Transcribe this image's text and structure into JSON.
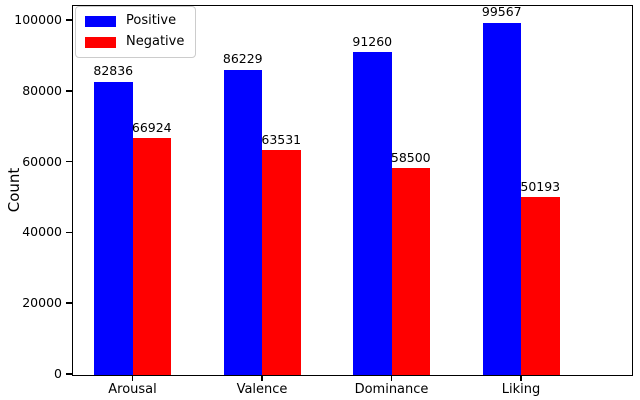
{
  "figure": {
    "ylabel": "Count",
    "background": "#ffffff"
  },
  "legend": {
    "position": "upper left",
    "items": [
      {
        "label": "Positive",
        "color": "#0000ff"
      },
      {
        "label": "Negative",
        "color": "#ff0000"
      }
    ]
  },
  "chart_data": {
    "type": "bar",
    "title": "",
    "xlabel": "",
    "ylabel": "Count",
    "categories": [
      "Arousal",
      "Valence",
      "Dominance",
      "Liking"
    ],
    "series": [
      {
        "name": "Positive",
        "color": "#0000ff",
        "values": [
          82836,
          86229,
          91260,
          99567
        ]
      },
      {
        "name": "Negative",
        "color": "#ff0000",
        "values": [
          66924,
          63531,
          58500,
          50193
        ]
      }
    ],
    "bar_value_labels": true,
    "yticks": [
      0,
      20000,
      40000,
      60000,
      80000,
      100000
    ],
    "ylim": [
      0,
      104000
    ],
    "grid": false,
    "legend_position": "upper left"
  }
}
